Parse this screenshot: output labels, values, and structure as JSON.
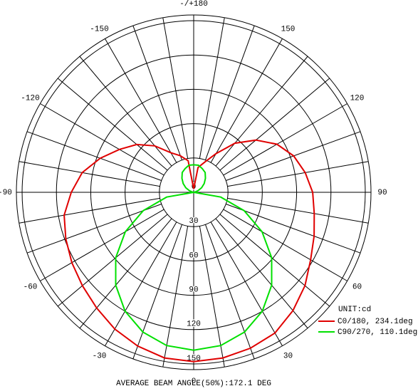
{
  "chart_data": {
    "type": "polar",
    "x": [
      -180,
      -170,
      -160,
      -150,
      -140,
      -130,
      -120,
      -110,
      -100,
      -90,
      -80,
      -70,
      -60,
      -50,
      -40,
      -30,
      -20,
      -10,
      0,
      10,
      20,
      30,
      40,
      50,
      60,
      70,
      80,
      90,
      100,
      110,
      120,
      130,
      140,
      150,
      160,
      170,
      180
    ],
    "series": [
      {
        "name": "C0/180, 234.1deg",
        "color": "#e00000",
        "values": [
          3,
          28,
          34,
          40,
          53,
          65,
          75,
          87,
          99,
          107,
          115,
          119,
          123,
          127,
          132,
          138,
          143,
          147,
          148,
          147,
          145,
          142,
          135,
          127,
          118,
          112,
          107,
          104,
          99,
          93,
          84,
          71,
          56,
          39,
          28,
          22,
          3
        ]
      },
      {
        "name": "C90/270, 110.1deg",
        "color": "#00e000",
        "values": [
          24,
          24,
          22,
          20,
          16,
          12,
          8,
          4,
          1,
          0,
          24,
          47,
          69,
          89,
          106,
          120,
          130,
          136,
          138,
          136,
          130,
          120,
          106,
          89,
          69,
          47,
          24,
          0,
          1,
          4,
          8,
          12,
          16,
          20,
          22,
          24,
          24
        ]
      }
    ],
    "rlim": [
      0,
      155
    ],
    "rticks": [
      0,
      30,
      60,
      90,
      120,
      150
    ],
    "xticks": [
      {
        "value": -180,
        "label": "-/+180"
      },
      -150,
      -120,
      -90,
      -60,
      -30,
      0,
      30,
      60,
      90,
      120,
      150
    ],
    "unit_label": "UNIT:cd",
    "footer": "AVERAGE BEAM ANGLE(50%):172.1 DEG"
  }
}
